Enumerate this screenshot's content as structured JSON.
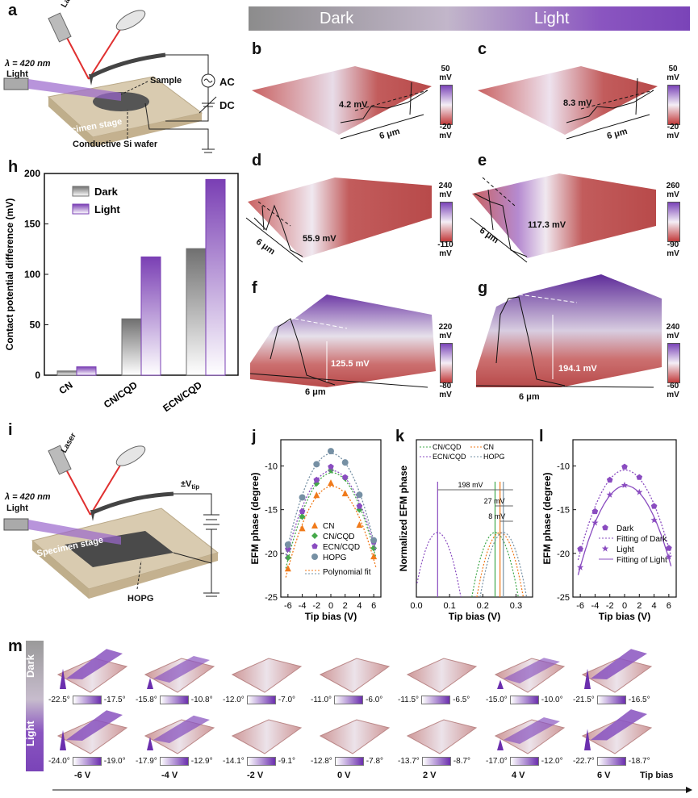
{
  "banner": {
    "dark": "Dark",
    "light": "Light"
  },
  "panel_letters": {
    "a": "a",
    "b": "b",
    "c": "c",
    "d": "d",
    "e": "e",
    "f": "f",
    "g": "g",
    "h": "h",
    "i": "i",
    "j": "j",
    "k": "k",
    "l": "l",
    "m": "m"
  },
  "setup_a": {
    "laser": "Laser",
    "wavelength": "λ = 420 nm",
    "light": "Light",
    "sample": "Sample",
    "ac": "AC",
    "dc": "DC",
    "stage": "Specimen stage",
    "wafer": "Conductive Si wafer"
  },
  "setup_i": {
    "laser": "Laser",
    "wavelength": "λ = 420 nm",
    "light": "Light",
    "vtip": "±V",
    "vtip_sub": "tip",
    "stage": "Specimen stage",
    "hopg": "HOPG"
  },
  "kpfm": {
    "b": {
      "value": "4.2 mV",
      "scale": "6 μm",
      "cb_top": "50",
      "cb_top_unit": "mV",
      "cb_bot": "-20",
      "cb_bot_unit": "mV"
    },
    "c": {
      "value": "8.3 mV",
      "scale": "6 μm",
      "cb_top": "50",
      "cb_top_unit": "mV",
      "cb_bot": "-20",
      "cb_bot_unit": "mV"
    },
    "d": {
      "value": "55.9 mV",
      "scale": "6 μm",
      "cb_top": "240",
      "cb_top_unit": "mV",
      "cb_bot": "-110",
      "cb_bot_unit": "mV"
    },
    "e": {
      "value": "117.3 mV",
      "scale": "6 μm",
      "cb_top": "260",
      "cb_top_unit": "mV",
      "cb_bot": "-90",
      "cb_bot_unit": "mV"
    },
    "f": {
      "value": "125.5 mV",
      "scale": "6 μm",
      "cb_top": "220",
      "cb_top_unit": "mV",
      "cb_bot": "-80",
      "cb_bot_unit": "mV"
    },
    "g": {
      "value": "194.1 mV",
      "scale": "6 μm",
      "cb_top": "240",
      "cb_top_unit": "mV",
      "cb_bot": "-60",
      "cb_bot_unit": "mV"
    }
  },
  "chart_data": [
    {
      "id": "h",
      "type": "bar",
      "categories": [
        "CN",
        "CN/CQD",
        "ECN/CQD"
      ],
      "series": [
        {
          "name": "Dark",
          "values": [
            4.2,
            55.9,
            125.5
          ],
          "color": "#707070"
        },
        {
          "name": "Light",
          "values": [
            8.3,
            117.3,
            194.1
          ],
          "color": "#7a3fb4"
        }
      ],
      "title": "",
      "xlabel": "",
      "ylabel": "Contact potential difference (mV)",
      "ylim": [
        0,
        200
      ],
      "yticks": [
        "0",
        "50",
        "100",
        "150",
        "200"
      ]
    },
    {
      "id": "j",
      "type": "scatter",
      "x": [
        -6,
        -4,
        -2,
        0,
        2,
        4,
        6
      ],
      "series": [
        {
          "name": "CN",
          "values": [
            -21.7,
            -17.1,
            -13.3,
            -11.9,
            -13.1,
            -16.7,
            -20.3
          ],
          "color": "#f07a1a",
          "marker": "triangle"
        },
        {
          "name": "CN/CQD",
          "values": [
            -20.5,
            -15.8,
            -12.0,
            -10.5,
            -11.4,
            -15.0,
            -19.4
          ],
          "color": "#45a84a",
          "marker": "diamond"
        },
        {
          "name": "ECN/CQD",
          "values": [
            -19.5,
            -15.2,
            -11.6,
            -10.1,
            -11.3,
            -14.6,
            -18.7
          ],
          "color": "#8a4cc0",
          "marker": "pentagon"
        },
        {
          "name": "HOPG",
          "values": [
            -19.0,
            -13.6,
            -9.8,
            -8.3,
            -9.6,
            -13.3,
            -18.5
          ],
          "color": "#7690a4",
          "marker": "circle"
        }
      ],
      "fit_label": "Polynomial fit",
      "xlabel": "Tip bias (V)",
      "ylabel": "EFM phase (degree)",
      "xlim": [
        -7,
        7
      ],
      "ylim": [
        -25,
        -7
      ],
      "xticks": [
        "-6",
        "-4",
        "-2",
        "0",
        "2",
        "4",
        "6"
      ],
      "yticks": [
        "-25",
        "-20",
        "-15",
        "-10"
      ]
    },
    {
      "id": "k",
      "type": "line",
      "series": [
        {
          "name": "CN/CQD",
          "vertex": 0.237,
          "color": "#3fa84a"
        },
        {
          "name": "CN",
          "vertex": 0.252,
          "color": "#f07a1a"
        },
        {
          "name": "ECN/CQD",
          "vertex": 0.064,
          "color": "#8a4cc0"
        },
        {
          "name": "HOPG",
          "vertex": 0.262,
          "color": "#7690a4"
        }
      ],
      "annotations": [
        "198 mV",
        "27 mV",
        "8 mV"
      ],
      "xlabel": "Tip bias (V)",
      "ylabel": "Normalized EFM phase",
      "xlim": [
        0.0,
        0.35
      ],
      "xticks": [
        "0.0",
        "0.1",
        "0.2",
        "0.3"
      ]
    },
    {
      "id": "l",
      "type": "scatter",
      "x": [
        -6,
        -4,
        -2,
        0,
        2,
        4,
        6
      ],
      "series": [
        {
          "name": "Dark",
          "values": [
            -19.5,
            -15.2,
            -11.6,
            -10.1,
            -11.3,
            -14.6,
            -19.4
          ],
          "color": "#8a4cc0",
          "marker": "pentagon"
        },
        {
          "name": "Light",
          "values": [
            -21.6,
            -16.5,
            -13.3,
            -12.2,
            -13.0,
            -16.2,
            -20.4
          ],
          "color": "#8a4cc0",
          "marker": "star"
        }
      ],
      "legend": [
        "Dark",
        "Fitting of Dark",
        "Light",
        "Fitting of Light"
      ],
      "xlabel": "Tip bias (V)",
      "ylabel": "EFM phase (degree)",
      "xlim": [
        -7,
        7
      ],
      "ylim": [
        -25,
        -7
      ],
      "xticks": [
        "-6",
        "-4",
        "-2",
        "0",
        "2",
        "4",
        "6"
      ],
      "yticks": [
        "-25",
        "-20",
        "-15",
        "-10"
      ]
    }
  ],
  "panel_m": {
    "row_dark": "Dark",
    "row_light": "Light",
    "dark_ranges": [
      [
        "-22.5°",
        "-17.5°"
      ],
      [
        "-15.8°",
        "-10.8°"
      ],
      [
        "-12.0°",
        "-7.0°"
      ],
      [
        "-11.0°",
        "-6.0°"
      ],
      [
        "-11.5°",
        "-6.5°"
      ],
      [
        "-15.0°",
        "-10.0°"
      ],
      [
        "-21.5°",
        "-16.5°"
      ]
    ],
    "light_ranges": [
      [
        "-24.0°",
        "-19.0°"
      ],
      [
        "-17.9°",
        "-12.9°"
      ],
      [
        "-14.1°",
        "-9.1°"
      ],
      [
        "-12.8°",
        "-7.8°"
      ],
      [
        "-13.7°",
        "-8.7°"
      ],
      [
        "-17.0°",
        "-12.0°"
      ],
      [
        "-22.7°",
        "-18.7°"
      ]
    ],
    "biases": [
      "-6 V",
      "-4 V",
      "-2 V",
      "0 V",
      "2 V",
      "4 V",
      "6 V"
    ],
    "axis_label": "Tip bias",
    "intensity_dark": [
      0.9,
      0.5,
      0.1,
      0.05,
      0.1,
      0.4,
      0.9
    ],
    "intensity_light": [
      0.9,
      0.6,
      0.15,
      0.05,
      0.1,
      0.5,
      0.95
    ]
  }
}
